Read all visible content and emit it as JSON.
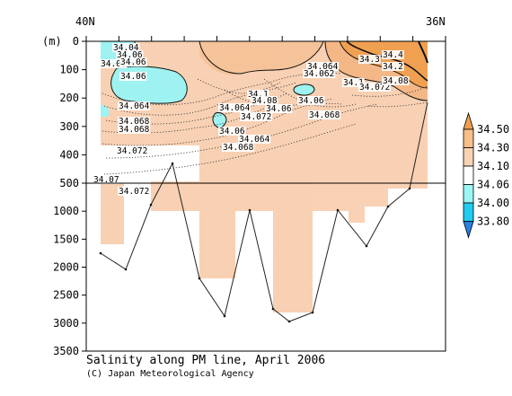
{
  "chart_data": {
    "type": "heatmap",
    "title": "Salinity along PM line, April 2006",
    "credit": "(C) Japan Meteorological Agency",
    "x_left_label": "40N",
    "x_right_label": "36N",
    "y_unit": "(m)",
    "y_ticks_upper": [
      "0",
      "100",
      "200",
      "300",
      "400",
      "500"
    ],
    "y_ticks_lower": [
      "1000",
      "1500",
      "2000",
      "2500",
      "3000",
      "3500"
    ],
    "y_break_depth_m": 500,
    "y_upper_range_m": [
      0,
      500
    ],
    "y_lower_range_m": [
      500,
      3500
    ],
    "colorbar": {
      "levels": [
        "34.50",
        "34.30",
        "34.10",
        "34.06",
        "34.00",
        "33.80"
      ],
      "colors": [
        "#f0a050",
        "#f5c08a",
        "#f7d3b4",
        "#ffffff",
        "#9cf5f5",
        "#22ccee",
        "#2a7fe0"
      ]
    },
    "contour_labels": [
      "34.04",
      "34.06",
      "34.01",
      "34.06",
      "34.06",
      "34.064",
      "34.068",
      "34.068",
      "34.072",
      "34.07",
      "34.072",
      "34.1",
      "34.08",
      "34.064",
      "34.072",
      "34.06",
      "34.064",
      "34.068",
      "34.06",
      "34.068",
      "34.06",
      "34.064",
      "34.062",
      "34.4",
      "34.3",
      "34.2",
      "34.1",
      "34.072",
      "34.08"
    ]
  }
}
